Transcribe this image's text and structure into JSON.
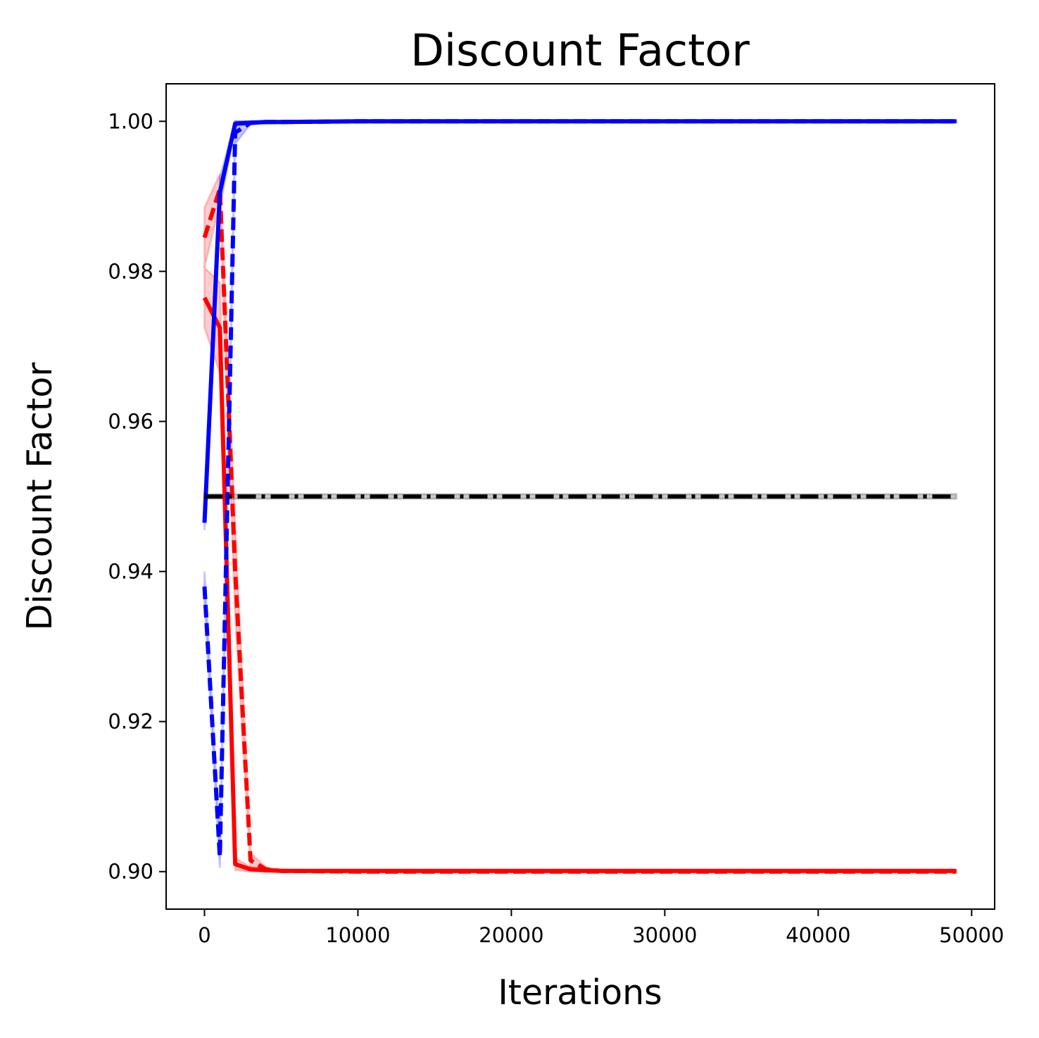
{
  "chart_data": {
    "type": "line",
    "title": "Discount Factor",
    "xlabel": "Iterations",
    "ylabel": "Discount Factor",
    "xlim": [
      -2500,
      51500
    ],
    "ylim": [
      0.895,
      1.005
    ],
    "xticks": [
      0,
      10000,
      20000,
      30000,
      40000,
      50000
    ],
    "xtick_labels": [
      "0",
      "10000",
      "20000",
      "30000",
      "40000",
      "50000"
    ],
    "yticks": [
      0.9,
      0.92,
      0.94,
      0.96,
      0.98,
      1.0
    ],
    "ytick_labels": [
      "0.90",
      "0.92",
      "0.94",
      "0.96",
      "0.98",
      "1.00"
    ],
    "grid": false,
    "series": [
      {
        "color": "#ff0000",
        "style": "solid",
        "x": [
          0,
          1000,
          2000,
          3000,
          4000,
          5000,
          10000,
          20000,
          30000,
          40000,
          49000
        ],
        "y": [
          0.9765,
          0.9725,
          0.901,
          0.9003,
          0.9002,
          0.9001,
          0.9001,
          0.9001,
          0.9001,
          0.9001,
          0.9001
        ],
        "band": [
          0.004,
          0.006,
          0.0008,
          0.0003,
          0.0002,
          0.0001,
          0.0001,
          0.0001,
          0.0001,
          0.0001,
          0.0001
        ]
      },
      {
        "color": "#ff0000",
        "style": "dashed",
        "x": [
          0,
          1000,
          2000,
          3000,
          4000,
          5000,
          10000,
          20000,
          30000,
          40000,
          49000
        ],
        "y": [
          0.9845,
          0.991,
          0.94,
          0.9015,
          0.9003,
          0.9001,
          0.9,
          0.9,
          0.9,
          0.9,
          0.9
        ],
        "band": [
          0.004,
          0.002,
          0.006,
          0.001,
          0.0003,
          0.0001,
          0.0001,
          0.0001,
          0.0001,
          0.0001,
          0.0001
        ]
      },
      {
        "color": "#0000ff",
        "style": "solid",
        "x": [
          0,
          1000,
          2000,
          3000,
          4000,
          5000,
          10000,
          20000,
          30000,
          40000,
          49000
        ],
        "y": [
          0.9465,
          0.9905,
          0.9997,
          0.9998,
          0.9999,
          0.9999,
          1.0,
          1.0,
          1.0,
          1.0,
          1.0
        ],
        "band": [
          0.001,
          0.002,
          0.0003,
          0.0002,
          0.0001,
          0.0001,
          0.0001,
          0.0001,
          0.0001,
          0.0001,
          0.0001
        ]
      },
      {
        "color": "#0000ff",
        "style": "dashed",
        "x": [
          0,
          1000,
          2000,
          3000,
          4000,
          5000,
          10000,
          20000,
          30000,
          40000,
          49000
        ],
        "y": [
          0.938,
          0.902,
          0.9985,
          0.9998,
          0.9999,
          0.9999,
          1.0,
          1.0,
          1.0,
          1.0,
          1.0
        ],
        "band": [
          0.002,
          0.0015,
          0.0015,
          0.0002,
          0.0001,
          0.0001,
          0.0001,
          0.0001,
          0.0001,
          0.0001,
          0.0001
        ]
      },
      {
        "color": "#000000",
        "style": "dashdot",
        "x": [
          0,
          49000
        ],
        "y": [
          0.95,
          0.95
        ],
        "band": [
          0.0003,
          0.0003
        ]
      }
    ]
  }
}
